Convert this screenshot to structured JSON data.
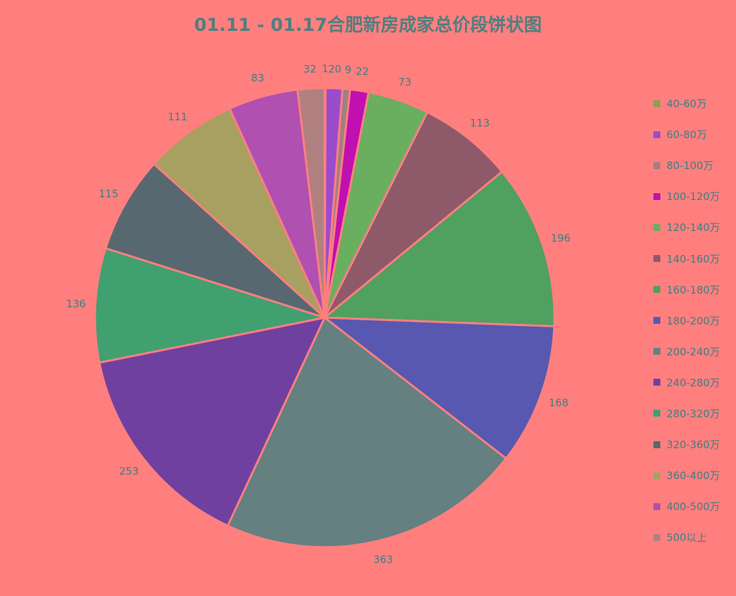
{
  "chart_data": {
    "type": "pie",
    "title": "01.11 - 01.17合肥新房成家总价段饼状图",
    "categories": [
      "40-60万",
      "60-80万",
      "80-100万",
      "100-120万",
      "120-140万",
      "140-160万",
      "160-180万",
      "180-200万",
      "200-240万",
      "240-280万",
      "280-320万",
      "320-360万",
      "360-400万",
      "400-500万",
      "500以上"
    ],
    "values": [
      1,
      20,
      9,
      22,
      73,
      113,
      196,
      168,
      363,
      253,
      136,
      115,
      111,
      83,
      32
    ],
    "colors": [
      "#8fa050",
      "#9a4ccc",
      "#a08080",
      "#c010b0",
      "#6aae60",
      "#8e5a6a",
      "#50a060",
      "#5858b0",
      "#648080",
      "#7040a0",
      "#40a070",
      "#586870",
      "#a8a060",
      "#b050b0",
      "#b08080"
    ],
    "legend_position": "right",
    "background": "#ff7f7f"
  }
}
